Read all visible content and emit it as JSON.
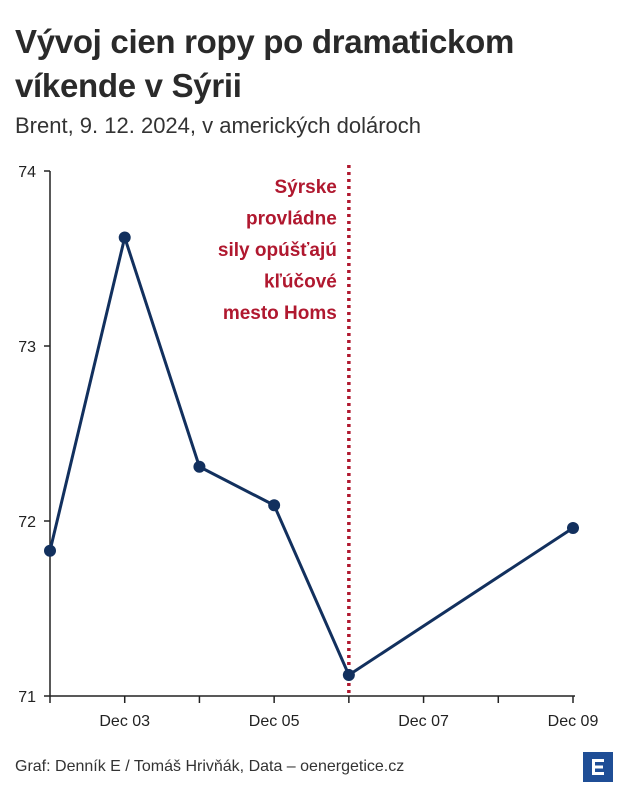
{
  "header": {
    "title": "Vývoj cien ropy po dramatickom víkende v Sýrii",
    "subtitle": "Brent, 9. 12. 2024, v amerických dolároch"
  },
  "footer": {
    "source": "Graf: Denník E / Tomáš Hrivňák, Data – oenergetice.cz",
    "logo_icon": "denník-e-logo-icon"
  },
  "colors": {
    "line": "#12305e",
    "annotation": "#b0182f",
    "logo": "#1f4e96",
    "axis": "#222222"
  },
  "chart_data": {
    "type": "line",
    "title": "Vývoj cien ropy po dramatickom víkende v Sýrii",
    "xlabel": "",
    "ylabel": "",
    "x": [
      "Dec 02",
      "Dec 03",
      "Dec 04",
      "Dec 05",
      "Dec 06",
      "Dec 09"
    ],
    "values": [
      71.83,
      73.62,
      72.31,
      72.09,
      71.12,
      71.96
    ],
    "xlim": [
      "Dec 02",
      "Dec 09"
    ],
    "ylim": [
      71,
      74
    ],
    "x_tick_labels": [
      "Dec 03",
      "Dec 05",
      "Dec 07",
      "Dec 09"
    ],
    "y_tick_labels": [
      "71",
      "72",
      "73",
      "74"
    ],
    "grid": false,
    "legend": "none",
    "annotation": {
      "x": "Dec 06",
      "style": "dotted vertical line",
      "lines": [
        "Sýrske",
        "provládne",
        "sily opúšťajú",
        "kľúčové",
        "mesto Homs"
      ]
    }
  }
}
